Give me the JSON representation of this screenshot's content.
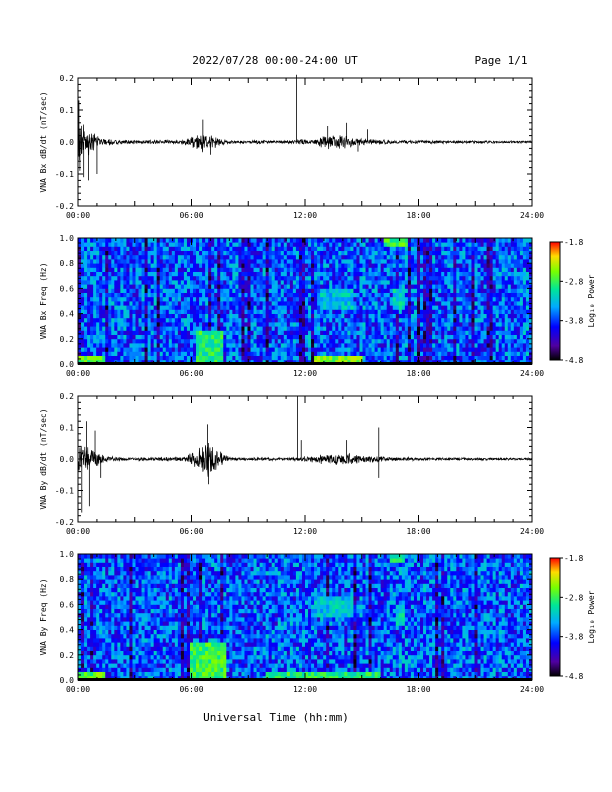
{
  "header": {
    "date_range": "2022/07/28  00:00-24:00 UT",
    "page": "Page 1/1"
  },
  "footer": {
    "xlabel": "Universal Time (hh:mm)"
  },
  "chart_data": [
    {
      "type": "line",
      "ylabel": "VNA Bx dB/dt (nT/sec)",
      "xlim": [
        0,
        24
      ],
      "ylim": [
        -0.2,
        0.2
      ],
      "yticks": [
        "0.2",
        "0.1",
        "0.0",
        "-0.1",
        "-0.2"
      ],
      "xticks": [
        "00:00",
        "06:00",
        "12:00",
        "18:00",
        "24:00"
      ],
      "grid": false,
      "envelope": [
        {
          "x": 0.0,
          "y": 0.08
        },
        {
          "x": 0.3,
          "y": 0.07
        },
        {
          "x": 0.7,
          "y": 0.04
        },
        {
          "x": 1.2,
          "y": 0.012
        },
        {
          "x": 3.0,
          "y": 0.006
        },
        {
          "x": 5.5,
          "y": 0.008
        },
        {
          "x": 6.6,
          "y": 0.035
        },
        {
          "x": 7.3,
          "y": 0.02
        },
        {
          "x": 8.0,
          "y": 0.006
        },
        {
          "x": 11.4,
          "y": 0.006
        },
        {
          "x": 11.7,
          "y": 0.012
        },
        {
          "x": 12.5,
          "y": 0.008
        },
        {
          "x": 13.0,
          "y": 0.022
        },
        {
          "x": 14.0,
          "y": 0.026
        },
        {
          "x": 15.0,
          "y": 0.012
        },
        {
          "x": 17.0,
          "y": 0.006
        },
        {
          "x": 24.0,
          "y": 0.004
        }
      ],
      "spikes": [
        {
          "x": 0.05,
          "y": 0.13
        },
        {
          "x": 0.1,
          "y": -0.09
        },
        {
          "x": 0.3,
          "y": -0.11
        },
        {
          "x": 0.55,
          "y": -0.12
        },
        {
          "x": 1.0,
          "y": -0.1
        },
        {
          "x": 6.6,
          "y": 0.07
        },
        {
          "x": 7.0,
          "y": -0.04
        },
        {
          "x": 11.55,
          "y": 0.21
        },
        {
          "x": 13.2,
          "y": 0.05
        },
        {
          "x": 14.2,
          "y": 0.06
        },
        {
          "x": 14.8,
          "y": -0.03
        },
        {
          "x": 15.3,
          "y": 0.04
        }
      ]
    },
    {
      "type": "heatmap",
      "ylabel": "VNA Bx Freq (Hz)",
      "xlim": [
        0,
        24
      ],
      "ylim": [
        0.0,
        1.0
      ],
      "yticks": [
        "1.0",
        "0.8",
        "0.6",
        "0.4",
        "0.2",
        "0.0"
      ],
      "xticks": [
        "00:00",
        "06:00",
        "12:00",
        "18:00",
        "24:00"
      ],
      "colorbar": {
        "label": "Log₁₀ Power",
        "ticks": [
          "-1.8",
          "-2.8",
          "-3.8",
          "-4.8"
        ],
        "range": [
          -4.8,
          -1.8
        ]
      },
      "features": [
        {
          "x": [
            0.0,
            1.5
          ],
          "y": [
            0.0,
            0.05
          ],
          "level": -2.4
        },
        {
          "x": [
            6.2,
            7.6
          ],
          "y": [
            0.0,
            0.25
          ],
          "level": -2.6
        },
        {
          "x": [
            12.5,
            15.0
          ],
          "y": [
            0.0,
            0.05
          ],
          "level": -2.3
        },
        {
          "x": [
            12.8,
            14.5
          ],
          "y": [
            0.45,
            0.6
          ],
          "level": -3.0
        },
        {
          "x": [
            16.2,
            17.4
          ],
          "y": [
            0.92,
            1.0
          ],
          "level": -2.5
        },
        {
          "x": [
            16.6,
            17.2
          ],
          "y": [
            0.45,
            0.6
          ],
          "level": -2.9
        }
      ]
    },
    {
      "type": "line",
      "ylabel": "VNA By dB/dt (nT/sec)",
      "xlim": [
        0,
        24
      ],
      "ylim": [
        -0.2,
        0.2
      ],
      "yticks": [
        "0.2",
        "0.1",
        "0.0",
        "-0.1",
        "-0.2"
      ],
      "xticks": [
        "00:00",
        "06:00",
        "12:00",
        "18:00",
        "24:00"
      ],
      "grid": false,
      "envelope": [
        {
          "x": 0.0,
          "y": 0.06
        },
        {
          "x": 0.3,
          "y": 0.05
        },
        {
          "x": 0.8,
          "y": 0.04
        },
        {
          "x": 1.5,
          "y": 0.01
        },
        {
          "x": 3.0,
          "y": 0.005
        },
        {
          "x": 5.5,
          "y": 0.008
        },
        {
          "x": 6.3,
          "y": 0.03
        },
        {
          "x": 6.8,
          "y": 0.07
        },
        {
          "x": 7.3,
          "y": 0.04
        },
        {
          "x": 8.0,
          "y": 0.006
        },
        {
          "x": 11.3,
          "y": 0.005
        },
        {
          "x": 12.0,
          "y": 0.01
        },
        {
          "x": 13.0,
          "y": 0.018
        },
        {
          "x": 14.2,
          "y": 0.02
        },
        {
          "x": 15.2,
          "y": 0.012
        },
        {
          "x": 17.0,
          "y": 0.006
        },
        {
          "x": 24.0,
          "y": 0.004
        }
      ],
      "spikes": [
        {
          "x": 0.2,
          "y": -0.17
        },
        {
          "x": 0.45,
          "y": 0.12
        },
        {
          "x": 0.6,
          "y": -0.15
        },
        {
          "x": 0.9,
          "y": 0.09
        },
        {
          "x": 1.2,
          "y": -0.06
        },
        {
          "x": 6.85,
          "y": 0.11
        },
        {
          "x": 6.9,
          "y": -0.08
        },
        {
          "x": 11.6,
          "y": 0.2
        },
        {
          "x": 11.8,
          "y": 0.06
        },
        {
          "x": 14.2,
          "y": 0.06
        },
        {
          "x": 15.9,
          "y": 0.1
        },
        {
          "x": 15.9,
          "y": -0.06
        }
      ]
    },
    {
      "type": "heatmap",
      "ylabel": "VNA By Freq (Hz)",
      "xlim": [
        0,
        24
      ],
      "ylim": [
        0.0,
        1.0
      ],
      "yticks": [
        "1.0",
        "0.8",
        "0.6",
        "0.4",
        "0.2",
        "0.0"
      ],
      "xticks": [
        "00:00",
        "06:00",
        "12:00",
        "18:00",
        "24:00"
      ],
      "colorbar": {
        "label": "Log₁₀ Power",
        "ticks": [
          "-1.8",
          "-2.8",
          "-3.8",
          "-4.8"
        ],
        "range": [
          -4.8,
          -1.8
        ]
      },
      "features": [
        {
          "x": [
            0.0,
            1.5
          ],
          "y": [
            0.0,
            0.08
          ],
          "level": -2.4
        },
        {
          "x": [
            6.0,
            7.8
          ],
          "y": [
            0.0,
            0.3
          ],
          "level": -2.5
        },
        {
          "x": [
            10.0,
            16.0
          ],
          "y": [
            0.0,
            0.05
          ],
          "level": -2.6
        },
        {
          "x": [
            12.5,
            14.5
          ],
          "y": [
            0.5,
            0.65
          ],
          "level": -3.0
        },
        {
          "x": [
            16.5,
            17.2
          ],
          "y": [
            0.92,
            1.0
          ],
          "level": -2.6
        },
        {
          "x": [
            16.8,
            17.2
          ],
          "y": [
            0.45,
            0.6
          ],
          "level": -2.9
        }
      ]
    }
  ]
}
